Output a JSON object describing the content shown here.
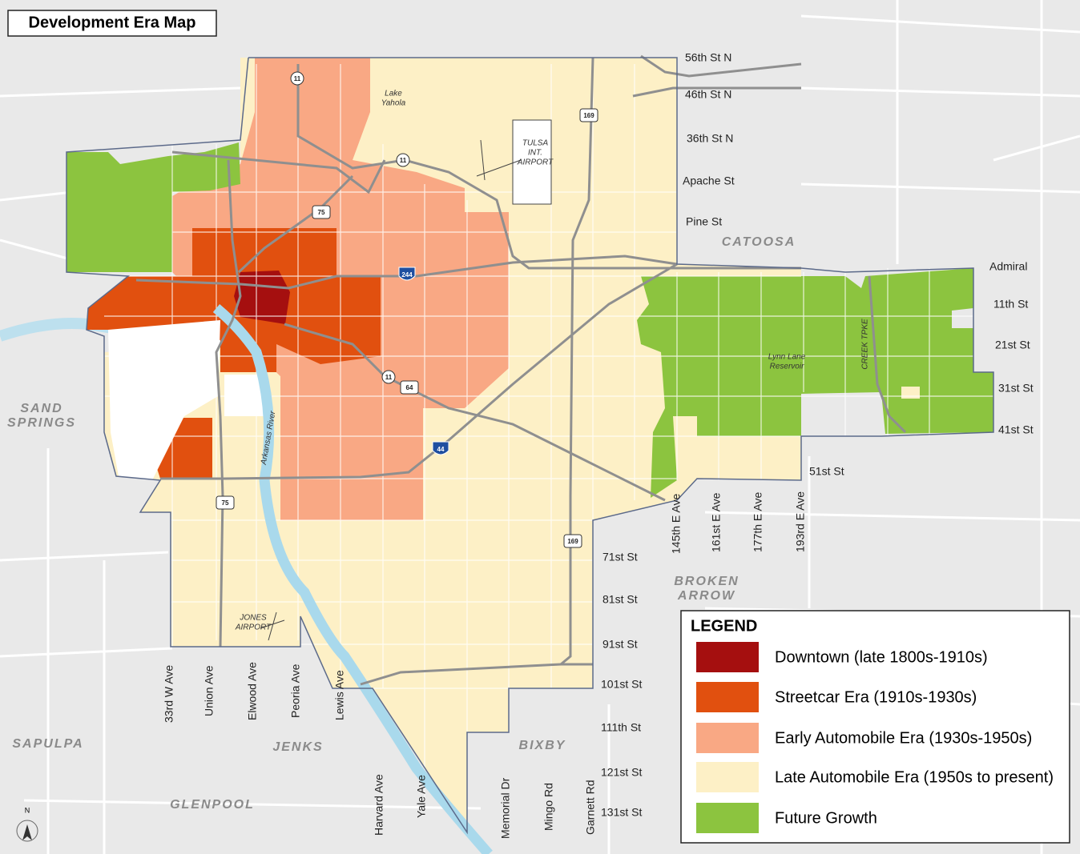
{
  "title": "Development Era Map",
  "legend": {
    "title": "LEGEND",
    "items": [
      {
        "label": "Downtown (late 1800s-1910s)",
        "color": "#a50f0f"
      },
      {
        "label": "Streetcar Era (1910s-1930s)",
        "color": "#e1500f"
      },
      {
        "label": "Early Automobile Era (1930s-1950s)",
        "color": "#f9a884"
      },
      {
        "label": "Late Automobile Era (1950s to present)",
        "color": "#fdf0c6"
      },
      {
        "label": "Future Growth",
        "color": "#8cc43f"
      }
    ]
  },
  "streets": [
    "56th St N",
    "46th St N",
    "36th St N",
    "Apache St",
    "Pine St",
    "Admiral",
    "11th St",
    "21st St",
    "31st St",
    "41st St",
    "51st St",
    "71st St",
    "81st St",
    "91st St",
    "101st St",
    "111th St",
    "121st St",
    "131st St"
  ],
  "avenues": [
    "145th E Ave",
    "161st E Ave",
    "177th E Ave",
    "193rd E Ave",
    "33rd W Ave",
    "Union Ave",
    "Elwood Ave",
    "Peoria Ave",
    "Lewis Ave",
    "Harvard Ave",
    "Yale Ave",
    "Memorial Dr",
    "Mingo Rd",
    "Garnett Rd"
  ],
  "cities": [
    {
      "lines": [
        "CATOOSA"
      ]
    },
    {
      "lines": [
        "SAND",
        "SPRINGS"
      ]
    },
    {
      "lines": [
        "BROKEN",
        "ARROW"
      ]
    },
    {
      "lines": [
        "SAPULPA"
      ]
    },
    {
      "lines": [
        "JENKS"
      ]
    },
    {
      "lines": [
        "BIXBY"
      ]
    },
    {
      "lines": [
        "GLENPOOL"
      ]
    }
  ],
  "features": [
    {
      "lines": [
        "Lake",
        "Yahola"
      ]
    },
    {
      "lines": [
        "TULSA",
        "INT.",
        "AIRPORT"
      ]
    },
    {
      "lines": [
        "JONES",
        "AIRPORT"
      ]
    },
    {
      "lines": [
        "Arkansas River"
      ]
    },
    {
      "lines": [
        "CREEK TPKE"
      ]
    },
    {
      "lines": [
        "Lynn Lane",
        "Reservoir"
      ]
    }
  ],
  "shields": [
    "11",
    "11",
    "11",
    "75",
    "75",
    "169",
    "169",
    "244",
    "64",
    "44"
  ],
  "compass": "N"
}
